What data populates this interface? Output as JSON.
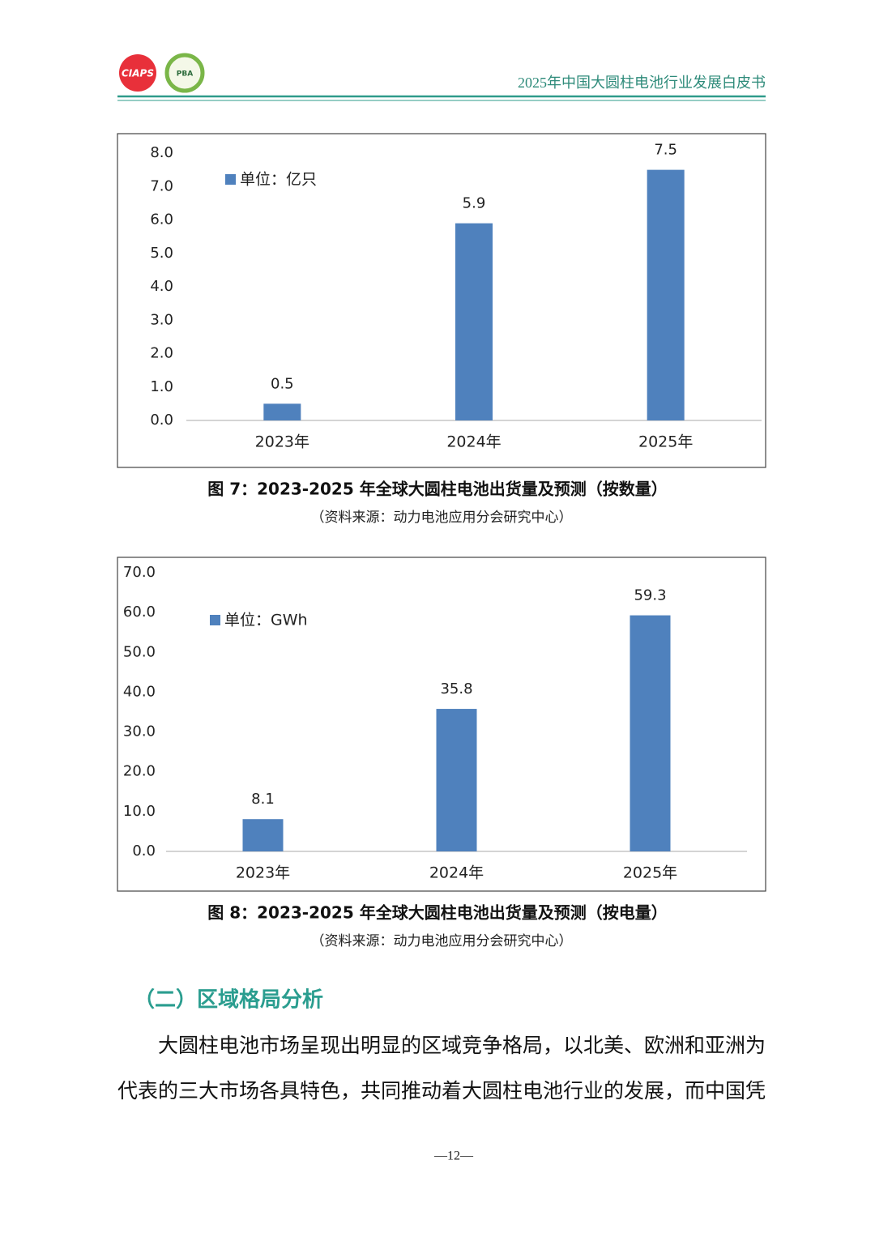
{
  "header": {
    "logos": [
      "CIAPS",
      "PBA"
    ],
    "title": "2025年中国大圆柱电池行业发展白皮书"
  },
  "chart_data": [
    {
      "type": "bar",
      "categories": [
        "2023年",
        "2024年",
        "2025年"
      ],
      "series": [
        {
          "name": "单位：亿只",
          "color": "#4f81bd",
          "values": [
            0.5,
            5.9,
            7.5
          ]
        }
      ],
      "ylim": [
        0,
        8
      ],
      "yticks": [
        {
          "value": 0,
          "label": "0.0"
        },
        {
          "value": 1,
          "label": "1.0"
        },
        {
          "value": 2,
          "label": "2.0"
        },
        {
          "value": 3,
          "label": "3.0"
        },
        {
          "value": 4,
          "label": "4.0"
        },
        {
          "value": 5,
          "label": "5.0"
        },
        {
          "value": 6,
          "label": "6.0"
        },
        {
          "value": 7,
          "label": "7.0"
        },
        {
          "value": 8,
          "label": "8.0"
        }
      ],
      "grid": false,
      "legend": "top-left",
      "caption": "图 7：2023-2025 年全球大圆柱电池出货量及预测（按数量）",
      "source": "（资料来源：动力电池应用分会研究中心）"
    },
    {
      "type": "bar",
      "categories": [
        "2023年",
        "2024年",
        "2025年"
      ],
      "series": [
        {
          "name": "单位：GWh",
          "color": "#4f81bd",
          "values": [
            8.1,
            35.8,
            59.3
          ]
        }
      ],
      "ylim": [
        0,
        70
      ],
      "yticks": [
        {
          "value": 0,
          "label": "0.0"
        },
        {
          "value": 10,
          "label": "10.0"
        },
        {
          "value": 20,
          "label": "20.0"
        },
        {
          "value": 30,
          "label": "30.0"
        },
        {
          "value": 40,
          "label": "40.0"
        },
        {
          "value": 50,
          "label": "50.0"
        },
        {
          "value": 60,
          "label": "60.0"
        },
        {
          "value": 70,
          "label": "70.0"
        }
      ],
      "grid": false,
      "legend": "top-left",
      "caption": "图 8：2023-2025 年全球大圆柱电池出货量及预测（按电量）",
      "source": "（资料来源：动力电池应用分会研究中心）"
    }
  ],
  "section": {
    "heading": "（二）区域格局分析",
    "paragraph": "大圆柱电池市场呈现出明显的区域竞争格局，以北美、欧洲和亚洲为代表的三大市场各具特色，共同推动着大圆柱电池行业的发展，而中国凭"
  },
  "footer": {
    "page": "—12—"
  }
}
